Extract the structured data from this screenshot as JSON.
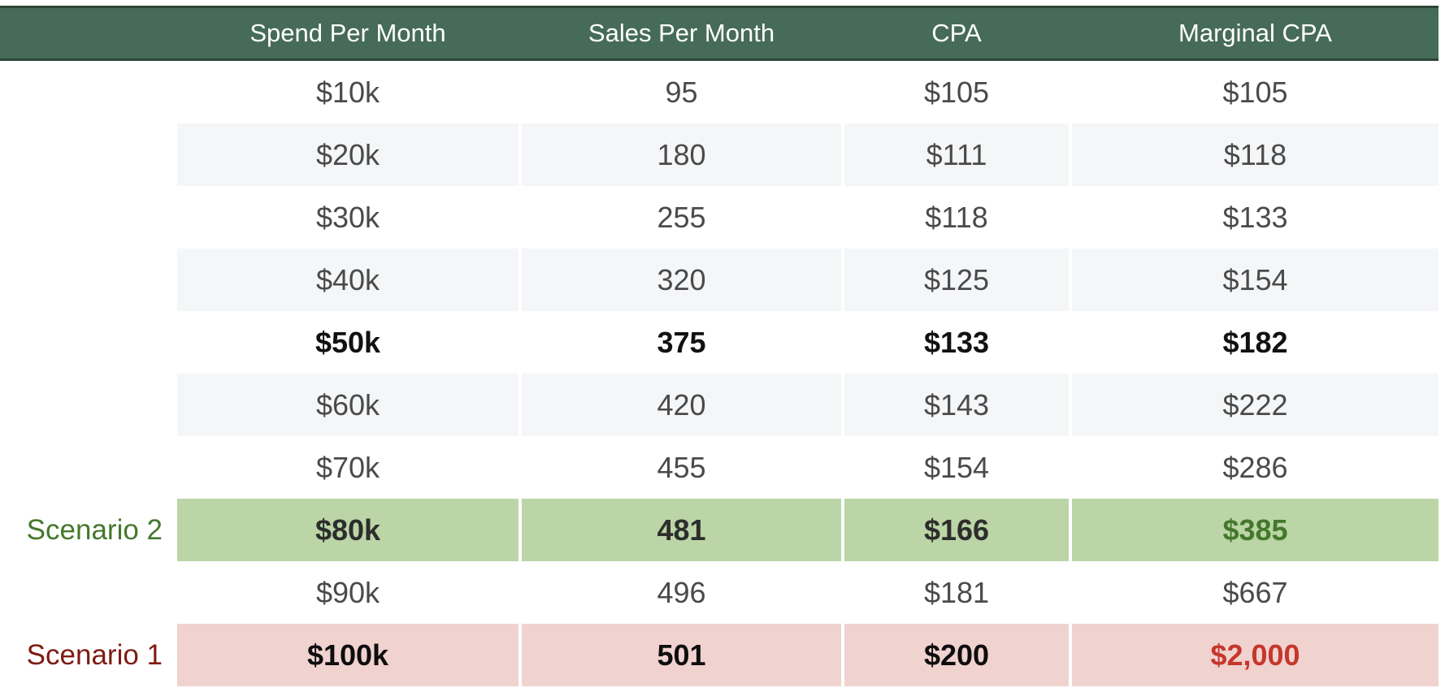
{
  "table": {
    "columns": [
      {
        "label": "Spend Per Month"
      },
      {
        "label": "Sales Per Month"
      },
      {
        "label": "CPA"
      },
      {
        "label": "Marginal CPA"
      }
    ],
    "rows": [
      {
        "label": "",
        "spend": "$10k",
        "sales": "95",
        "cpa": "$105",
        "marginal_cpa": "$105",
        "variant": "plain"
      },
      {
        "label": "",
        "spend": "$20k",
        "sales": "180",
        "cpa": "$111",
        "marginal_cpa": "$118",
        "variant": "alt"
      },
      {
        "label": "",
        "spend": "$30k",
        "sales": "255",
        "cpa": "$118",
        "marginal_cpa": "$133",
        "variant": "plain"
      },
      {
        "label": "",
        "spend": "$40k",
        "sales": "320",
        "cpa": "$125",
        "marginal_cpa": "$154",
        "variant": "alt"
      },
      {
        "label": "",
        "spend": "$50k",
        "sales": "375",
        "cpa": "$133",
        "marginal_cpa": "$182",
        "variant": "bold"
      },
      {
        "label": "",
        "spend": "$60k",
        "sales": "420",
        "cpa": "$143",
        "marginal_cpa": "$222",
        "variant": "alt"
      },
      {
        "label": "",
        "spend": "$70k",
        "sales": "455",
        "cpa": "$154",
        "marginal_cpa": "$286",
        "variant": "plain"
      },
      {
        "label": "Scenario 2",
        "spend": "$80k",
        "sales": "481",
        "cpa": "$166",
        "marginal_cpa": "$385",
        "variant": "scenario2"
      },
      {
        "label": "",
        "spend": "$90k",
        "sales": "496",
        "cpa": "$181",
        "marginal_cpa": "$667",
        "variant": "plain"
      },
      {
        "label": "Scenario 1",
        "spend": "$100k",
        "sales": "501",
        "cpa": "$200",
        "marginal_cpa": "$2,000",
        "variant": "scenario1"
      }
    ]
  },
  "colors": {
    "header_bg": "#466B59",
    "header_border": "#2C4638",
    "header_text": "#FFFFFF",
    "row_alt_bg": "#F4F6F8",
    "text": "#4A4A4A",
    "bold_text": "#111111",
    "scenario2_bg": "#BBD5A6",
    "scenario2_text": "#44782C",
    "scenario1_bg": "#F0D2CF",
    "scenario1_text": "#C5372B",
    "scenario1_label": "#7E1B12"
  },
  "chart_data": {
    "type": "table",
    "title": "",
    "columns": [
      "Spend Per Month",
      "Sales Per Month",
      "CPA",
      "Marginal CPA"
    ],
    "rows": [
      {
        "spend_per_month": "$10k",
        "spend_usd": 10000,
        "sales_per_month": 95,
        "cpa_usd": 105,
        "marginal_cpa_usd": 105
      },
      {
        "spend_per_month": "$20k",
        "spend_usd": 20000,
        "sales_per_month": 180,
        "cpa_usd": 111,
        "marginal_cpa_usd": 118
      },
      {
        "spend_per_month": "$30k",
        "spend_usd": 30000,
        "sales_per_month": 255,
        "cpa_usd": 118,
        "marginal_cpa_usd": 133
      },
      {
        "spend_per_month": "$40k",
        "spend_usd": 40000,
        "sales_per_month": 320,
        "cpa_usd": 125,
        "marginal_cpa_usd": 154
      },
      {
        "spend_per_month": "$50k",
        "spend_usd": 50000,
        "sales_per_month": 375,
        "cpa_usd": 133,
        "marginal_cpa_usd": 182
      },
      {
        "spend_per_month": "$60k",
        "spend_usd": 60000,
        "sales_per_month": 420,
        "cpa_usd": 143,
        "marginal_cpa_usd": 222
      },
      {
        "spend_per_month": "$70k",
        "spend_usd": 70000,
        "sales_per_month": 455,
        "cpa_usd": 154,
        "marginal_cpa_usd": 286
      },
      {
        "spend_per_month": "$80k",
        "spend_usd": 80000,
        "sales_per_month": 481,
        "cpa_usd": 166,
        "marginal_cpa_usd": 385
      },
      {
        "spend_per_month": "$90k",
        "spend_usd": 90000,
        "sales_per_month": 496,
        "cpa_usd": 181,
        "marginal_cpa_usd": 667
      },
      {
        "spend_per_month": "$100k",
        "spend_usd": 100000,
        "sales_per_month": 501,
        "cpa_usd": 200,
        "marginal_cpa_usd": 2000
      }
    ],
    "annotations": [
      {
        "label": "Scenario 2",
        "row": "$80k",
        "highlight": "green"
      },
      {
        "label": "Scenario 1",
        "row": "$100k",
        "highlight": "red"
      }
    ],
    "layout_hints": {
      "header_style": "dark-green",
      "zebra_stripes": true,
      "bold_rows": [
        "$50k",
        "$80k",
        "$100k"
      ]
    }
  }
}
